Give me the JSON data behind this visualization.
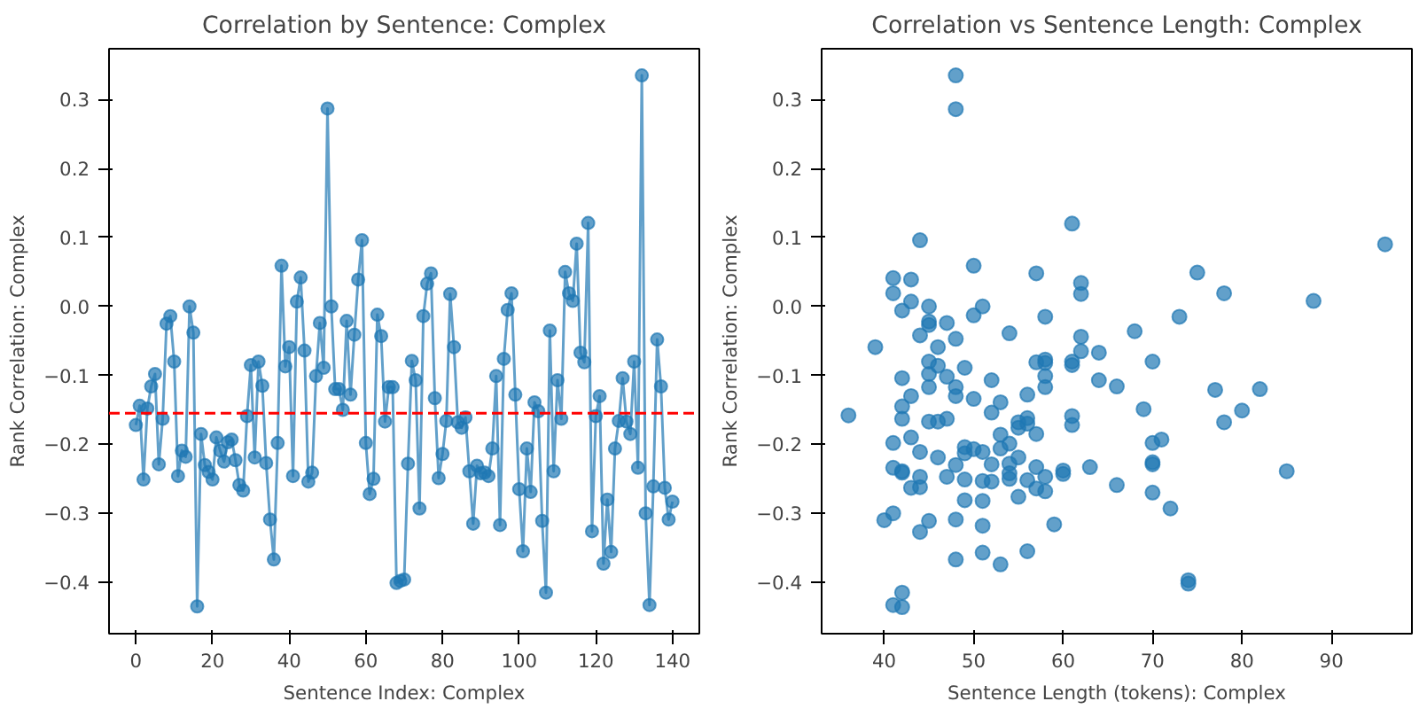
{
  "chart_data": [
    {
      "type": "line",
      "title": "Correlation by Sentence: Complex",
      "xlabel": "Sentence Index: Complex",
      "ylabel": "Rank Correlation: Complex",
      "x": [
        0,
        1,
        2,
        3,
        4,
        5,
        6,
        7,
        8,
        9,
        10,
        11,
        12,
        13,
        14,
        15,
        16,
        17,
        18,
        19,
        20,
        21,
        22,
        23,
        24,
        25,
        26,
        27,
        28,
        29,
        30,
        31,
        32,
        33,
        34,
        35,
        36,
        37,
        38,
        39,
        40,
        41,
        42,
        43,
        44,
        45,
        46,
        47,
        48,
        49,
        50,
        51,
        52,
        53,
        54,
        55,
        56,
        57,
        58,
        59,
        60,
        61,
        62,
        63,
        64,
        65,
        66,
        67,
        68,
        69,
        70,
        71,
        72,
        73,
        74,
        75,
        76,
        77,
        78,
        79,
        80,
        81,
        82,
        83,
        84,
        85,
        86,
        87,
        88,
        89,
        90,
        91,
        92,
        93,
        94,
        95,
        96,
        97,
        98,
        99,
        100,
        101,
        102,
        103,
        104,
        105,
        106,
        107,
        108,
        109,
        110,
        111,
        112,
        113,
        114,
        115,
        116,
        117,
        118,
        119,
        120,
        121,
        122,
        123,
        124,
        125,
        126,
        127,
        128,
        129,
        130,
        131,
        132,
        133,
        134,
        135,
        136,
        137,
        138,
        139,
        140
      ],
      "series": [
        {
          "color": "#1f77b4",
          "values": [
            -0.172,
            -0.144,
            -0.251,
            -0.148,
            -0.116,
            -0.098,
            -0.229,
            -0.163,
            -0.025,
            -0.014,
            -0.08,
            -0.246,
            -0.209,
            -0.218,
            0.0,
            -0.038,
            -0.435,
            -0.185,
            -0.23,
            -0.24,
            -0.251,
            -0.19,
            -0.209,
            -0.225,
            -0.197,
            -0.193,
            -0.223,
            -0.259,
            -0.267,
            -0.159,
            -0.085,
            -0.219,
            -0.08,
            -0.115,
            -0.227,
            -0.309,
            -0.367,
            -0.198,
            0.059,
            -0.087,
            -0.059,
            -0.246,
            0.007,
            0.042,
            -0.064,
            -0.254,
            -0.241,
            -0.101,
            -0.024,
            -0.089,
            0.287,
            0.0,
            -0.12,
            -0.12,
            -0.15,
            -0.021,
            -0.128,
            -0.041,
            0.039,
            0.096,
            -0.198,
            -0.272,
            -0.25,
            -0.012,
            -0.043,
            -0.167,
            -0.117,
            -0.117,
            -0.401,
            -0.398,
            -0.396,
            -0.228,
            -0.079,
            -0.107,
            -0.293,
            -0.014,
            0.033,
            0.048,
            -0.133,
            -0.249,
            -0.214,
            -0.166,
            0.018,
            -0.059,
            -0.168,
            -0.176,
            -0.161,
            -0.239,
            -0.315,
            -0.231,
            -0.242,
            -0.241,
            -0.246,
            -0.206,
            -0.101,
            -0.317,
            -0.076,
            -0.005,
            0.019,
            -0.128,
            -0.265,
            -0.355,
            -0.206,
            -0.269,
            -0.139,
            -0.152,
            -0.311,
            -0.415,
            -0.035,
            -0.239,
            -0.107,
            -0.163,
            0.05,
            0.019,
            0.008,
            0.091,
            -0.067,
            -0.081,
            0.121,
            -0.326,
            -0.159,
            -0.13,
            -0.373,
            -0.28,
            -0.356,
            -0.206,
            -0.166,
            -0.104,
            -0.167,
            -0.185,
            -0.08,
            -0.234,
            0.335,
            -0.3,
            -0.433,
            -0.261,
            -0.048,
            -0.116,
            -0.263,
            -0.309,
            -0.283
          ]
        }
      ],
      "marker": "circle",
      "line_style": "solid",
      "grid": false,
      "xlim": [
        -7,
        147
      ],
      "xticks": [
        0,
        20,
        40,
        60,
        80,
        100,
        120,
        140
      ],
      "ylim": [
        -0.4745,
        0.3736
      ],
      "yticks": [
        {
          "value": -0.4,
          "label": "−0.4"
        },
        {
          "value": -0.3,
          "label": "−0.3"
        },
        {
          "value": -0.2,
          "label": "−0.2"
        },
        {
          "value": -0.1,
          "label": "−0.1"
        },
        {
          "value": 0.0,
          "label": "0.0"
        },
        {
          "value": 0.1,
          "label": "0.1"
        },
        {
          "value": 0.2,
          "label": "0.2"
        },
        {
          "value": 0.3,
          "label": "0.3"
        }
      ],
      "ref_lines": [
        {
          "axis": "y",
          "value": -0.155,
          "color": "#ff0000",
          "line_style": "dashed"
        }
      ]
    },
    {
      "type": "scatter",
      "title": "Correlation vs Sentence Length: Complex",
      "xlabel": "Sentence Length (tokens): Complex",
      "ylabel": "Rank Correlation: Complex",
      "x": [
        48,
        48,
        41,
        41,
        43,
        42,
        43,
        44,
        45,
        45,
        45,
        47,
        44,
        39,
        46,
        48,
        50,
        51,
        50,
        45,
        46,
        49,
        45,
        47,
        42,
        48,
        48,
        45,
        43,
        50,
        52,
        54,
        53,
        52,
        42,
        42,
        36,
        45,
        46,
        47,
        43,
        41,
        44,
        46,
        48,
        49,
        49,
        50,
        51,
        53,
        53,
        54,
        55,
        55,
        55,
        56,
        56,
        57,
        56,
        57,
        58,
        58,
        58,
        58,
        58,
        57,
        41,
        42,
        42,
        44,
        44,
        43,
        47,
        49,
        51,
        52,
        54,
        54,
        54,
        52,
        56,
        57,
        57,
        58,
        58,
        60,
        60,
        55,
        49,
        51,
        45,
        48,
        51,
        59,
        40,
        41,
        44,
        48,
        51,
        53,
        56,
        41,
        42,
        42,
        61,
        62,
        62,
        62,
        62,
        61,
        61,
        61,
        61,
        63,
        64,
        64,
        66,
        66,
        68,
        69,
        70,
        70,
        71,
        70,
        70,
        70,
        72,
        73,
        74,
        74,
        75,
        77,
        78,
        78,
        80,
        82,
        85,
        88,
        96
      ],
      "series": [
        {
          "color": "#1f77b4",
          "values": [
            0.335,
            0.286,
            0.041,
            0.019,
            0.039,
            -0.006,
            0.007,
            0.096,
            0.0,
            -0.022,
            -0.027,
            -0.024,
            -0.042,
            -0.059,
            -0.059,
            -0.047,
            0.059,
            0.0,
            -0.013,
            -0.08,
            -0.086,
            -0.089,
            -0.098,
            -0.102,
            -0.104,
            -0.117,
            -0.13,
            -0.117,
            -0.13,
            -0.134,
            -0.107,
            -0.039,
            -0.139,
            -0.154,
            -0.145,
            -0.163,
            -0.158,
            -0.167,
            -0.167,
            -0.163,
            -0.19,
            -0.198,
            -0.211,
            -0.219,
            -0.23,
            -0.204,
            -0.213,
            -0.207,
            -0.211,
            -0.186,
            -0.206,
            -0.199,
            -0.219,
            -0.168,
            -0.176,
            -0.162,
            -0.17,
            -0.185,
            -0.128,
            -0.081,
            -0.077,
            -0.082,
            -0.101,
            -0.117,
            -0.015,
            0.048,
            -0.234,
            -0.239,
            -0.241,
            -0.247,
            -0.262,
            -0.263,
            -0.247,
            -0.251,
            -0.253,
            -0.254,
            -0.228,
            -0.242,
            -0.25,
            -0.229,
            -0.252,
            -0.233,
            -0.264,
            -0.247,
            -0.268,
            -0.238,
            -0.243,
            -0.276,
            -0.281,
            -0.282,
            -0.311,
            -0.309,
            -0.318,
            -0.316,
            -0.31,
            -0.3,
            -0.327,
            -0.367,
            -0.357,
            -0.374,
            -0.355,
            -0.433,
            -0.415,
            -0.436,
            0.12,
            0.034,
            0.018,
            -0.044,
            -0.065,
            -0.08,
            -0.085,
            -0.159,
            -0.172,
            -0.233,
            -0.067,
            -0.107,
            -0.116,
            -0.259,
            -0.036,
            -0.149,
            -0.08,
            -0.198,
            -0.193,
            -0.226,
            -0.229,
            -0.27,
            -0.293,
            -0.015,
            -0.397,
            -0.402,
            0.049,
            -0.121,
            0.019,
            -0.168,
            -0.151,
            -0.12,
            -0.239,
            0.008,
            0.09
          ]
        }
      ],
      "marker": "circle",
      "grid": false,
      "xlim": [
        33,
        99
      ],
      "xticks": [
        40,
        50,
        60,
        70,
        80,
        90
      ],
      "ylim": [
        -0.4745,
        0.3736
      ],
      "yticks": [
        {
          "value": -0.4,
          "label": "−0.4"
        },
        {
          "value": -0.3,
          "label": "−0.3"
        },
        {
          "value": -0.2,
          "label": "−0.2"
        },
        {
          "value": -0.1,
          "label": "−0.1"
        },
        {
          "value": 0.0,
          "label": "0.0"
        },
        {
          "value": 0.1,
          "label": "0.1"
        },
        {
          "value": 0.2,
          "label": "0.2"
        },
        {
          "value": 0.3,
          "label": "0.3"
        }
      ]
    }
  ]
}
